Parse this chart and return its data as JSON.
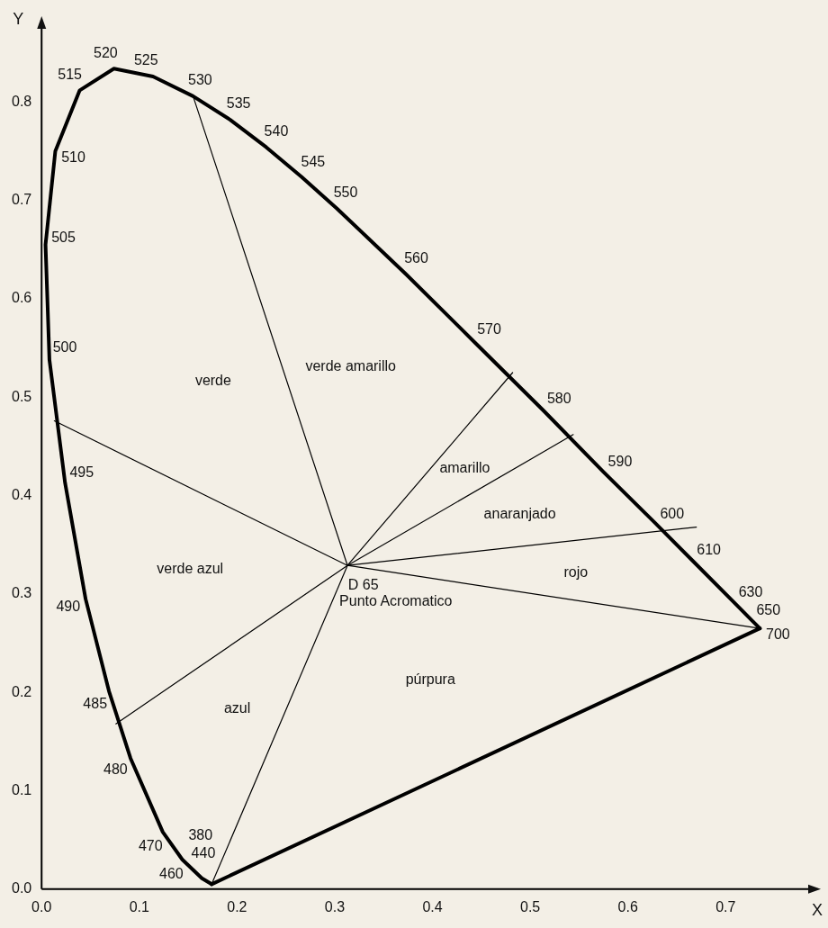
{
  "chart_data": {
    "type": "line",
    "xlabel": "X",
    "ylabel": "Y",
    "xlim": [
      0,
      0.79
    ],
    "ylim": [
      0,
      0.88
    ],
    "xticks": [
      {
        "value": 0,
        "label": "0.0"
      },
      0.1,
      0.2,
      0.3,
      0.4,
      0.5,
      0.6,
      0.7
    ],
    "yticks": [
      {
        "value": 0,
        "label": "0.0"
      },
      0.1,
      0.2,
      0.3,
      0.4,
      0.5,
      0.6,
      0.7,
      0.8
    ],
    "grid": false,
    "legend": false,
    "marker": "none",
    "line_style": "solid",
    "series": [
      {
        "color": "#000000",
        "x": [
          0.174,
          0.164,
          0.144,
          0.124,
          0.091,
          0.069,
          0.045,
          0.024,
          0.008,
          0.004,
          0.014,
          0.039,
          0.074,
          0.114,
          0.155,
          0.193,
          0.23,
          0.266,
          0.302,
          0.373,
          0.444,
          0.513,
          0.575,
          0.627,
          0.666,
          0.708,
          0.726,
          0.735
        ],
        "values": [
          0.005,
          0.011,
          0.03,
          0.058,
          0.133,
          0.201,
          0.295,
          0.413,
          0.538,
          0.655,
          0.75,
          0.812,
          0.834,
          0.826,
          0.806,
          0.782,
          0.754,
          0.724,
          0.692,
          0.625,
          0.555,
          0.487,
          0.424,
          0.373,
          0.334,
          0.292,
          0.274,
          0.265
        ]
      },
      {
        "color": "#000000",
        "x": [
          0.174,
          0.735
        ],
        "values": [
          0.005,
          0.265
        ]
      },
      {
        "color": "#000000",
        "x": [
          0.313,
          0.155
        ],
        "values": [
          0.329,
          0.806
        ]
      },
      {
        "color": "#000000",
        "x": [
          0.174,
          0.313,
          0.482
        ],
        "values": [
          0.005,
          0.329,
          0.525
        ]
      },
      {
        "color": "#000000",
        "x": [
          0.076,
          0.313,
          0.544
        ],
        "values": [
          0.168,
          0.329,
          0.462
        ]
      },
      {
        "color": "#000000",
        "x": [
          0.313,
          0.67
        ],
        "values": [
          0.329,
          0.368
        ]
      },
      {
        "color": "#000000",
        "x": [
          0.013,
          0.313,
          0.735
        ],
        "values": [
          0.476,
          0.329,
          0.265
        ]
      }
    ],
    "annotations": [
      {
        "text": "515",
        "x": 0.039,
        "y": 0.812
      },
      {
        "text": "520",
        "x": 0.074,
        "y": 0.834
      },
      {
        "text": "525",
        "x": 0.114,
        "y": 0.826
      },
      {
        "text": "530",
        "x": 0.155,
        "y": 0.806
      },
      {
        "text": "535",
        "x": 0.193,
        "y": 0.782
      },
      {
        "text": "540",
        "x": 0.23,
        "y": 0.754
      },
      {
        "text": "545",
        "x": 0.266,
        "y": 0.724
      },
      {
        "text": "550",
        "x": 0.302,
        "y": 0.692
      },
      {
        "text": "560",
        "x": 0.373,
        "y": 0.625
      },
      {
        "text": "570",
        "x": 0.444,
        "y": 0.555
      },
      {
        "text": "580",
        "x": 0.513,
        "y": 0.487
      },
      {
        "text": "590",
        "x": 0.575,
        "y": 0.424
      },
      {
        "text": "600",
        "x": 0.627,
        "y": 0.373
      },
      {
        "text": "610",
        "x": 0.666,
        "y": 0.334
      },
      {
        "text": "630",
        "x": 0.708,
        "y": 0.292
      },
      {
        "text": "650",
        "x": 0.726,
        "y": 0.274
      },
      {
        "text": "700",
        "x": 0.735,
        "y": 0.265
      },
      {
        "text": "510",
        "x": 0.014,
        "y": 0.75
      },
      {
        "text": "505",
        "x": 0.004,
        "y": 0.655
      },
      {
        "text": "500",
        "x": 0.008,
        "y": 0.538
      },
      {
        "text": "495",
        "x": 0.024,
        "y": 0.413
      },
      {
        "text": "490",
        "x": 0.045,
        "y": 0.295
      },
      {
        "text": "485",
        "x": 0.069,
        "y": 0.201
      },
      {
        "text": "480",
        "x": 0.091,
        "y": 0.133
      },
      {
        "text": "470",
        "x": 0.124,
        "y": 0.058
      },
      {
        "text": "460",
        "x": 0.144,
        "y": 0.03
      },
      {
        "text": "440",
        "x": 0.164,
        "y": 0.011
      },
      {
        "text": "380",
        "x": 0.174,
        "y": 0.005
      },
      {
        "text": "Punto Acromatico",
        "x": 0.313,
        "y": 0.329
      },
      {
        "text": "D 65",
        "x": 0.313,
        "y": 0.329
      },
      "verde amarillo",
      "amarillo",
      "anaranjado",
      "rojo",
      "púrpura",
      "azul",
      "verde azul",
      "verde"
    ]
  }
}
